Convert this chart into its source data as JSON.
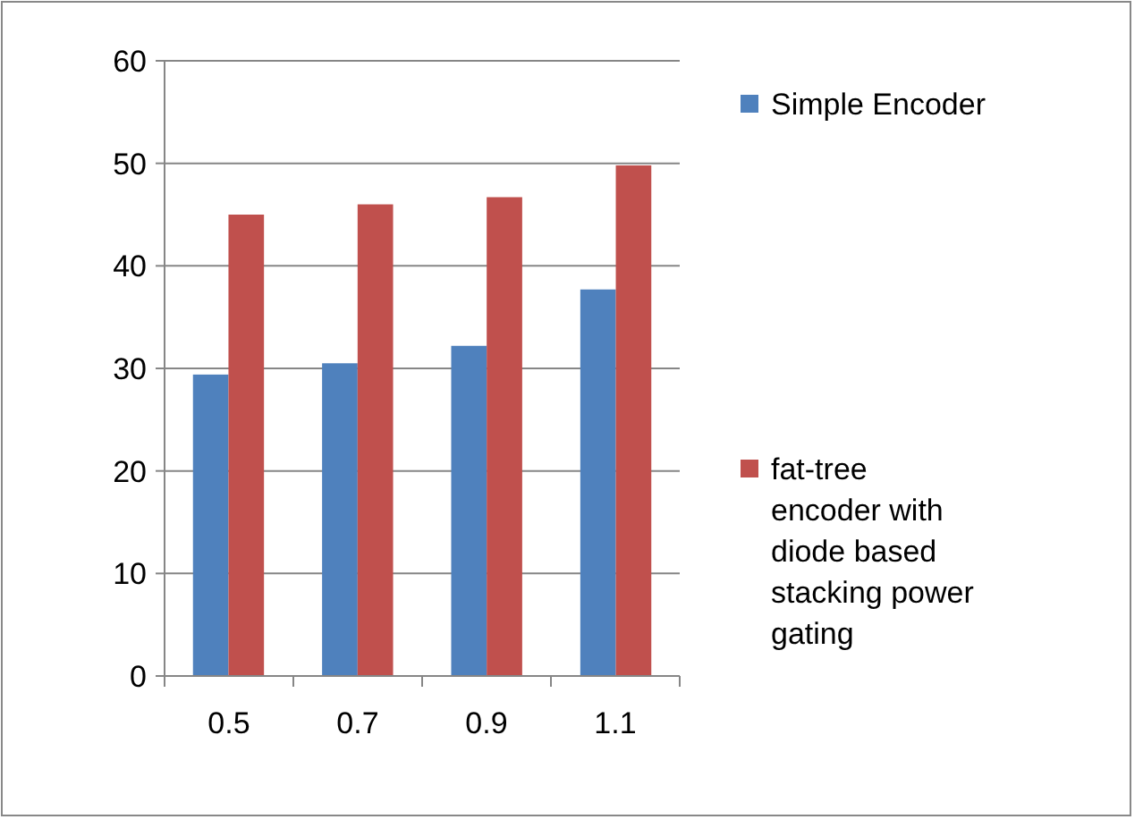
{
  "chart_data": {
    "type": "bar",
    "categories": [
      "0.5",
      "0.7",
      "0.9",
      "1.1"
    ],
    "series": [
      {
        "name": "Simple Encoder",
        "color": "#4f81bd",
        "values": [
          29.4,
          30.5,
          32.2,
          37.7
        ]
      },
      {
        "name": "fat-tree encoder with diode based stacking power gating",
        "color": "#c0504d",
        "values": [
          45.0,
          46.0,
          46.7,
          49.8
        ]
      }
    ],
    "ylim": [
      0,
      60
    ],
    "yticks": [
      0,
      10,
      20,
      30,
      40,
      50,
      60
    ],
    "grid": "y",
    "legend": "right"
  }
}
